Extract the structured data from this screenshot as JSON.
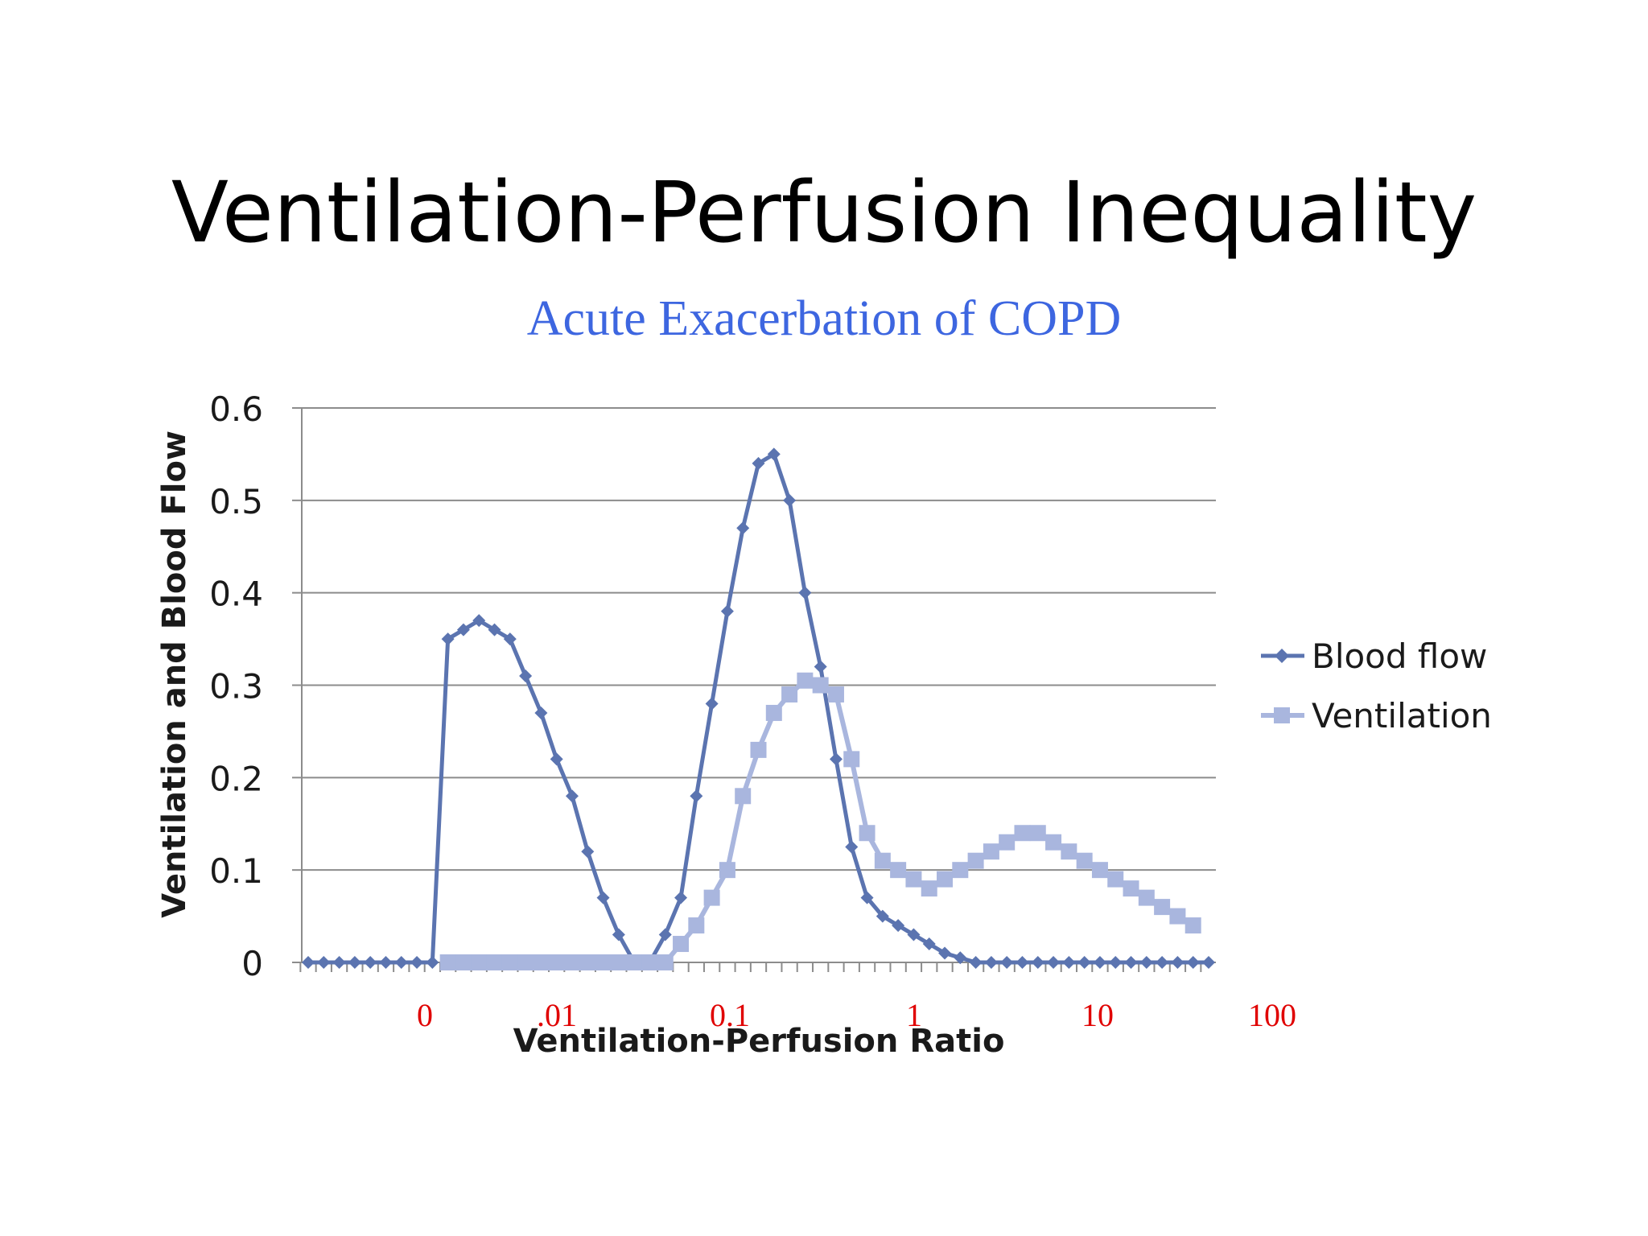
{
  "slide": {
    "title": "Ventilation-Perfusion Inequality",
    "subtitle": "Acute Exacerbation of COPD"
  },
  "colors": {
    "title": "#000000",
    "subtitle": "#3d66e0",
    "blood_flow": "#5b74b0",
    "ventilation": "#a9b6de",
    "gridline": "#8c8c8c",
    "bottom_labels": "#e00000"
  },
  "chart_data": {
    "type": "line",
    "title": "",
    "xlabel": "Ventilation-Perfusion Ratio",
    "ylabel": "Ventilation and Blood Flow",
    "ylim": [
      0,
      0.6
    ],
    "yticks": [
      "0",
      "0.1",
      "0.2",
      "0.3",
      "0.4",
      "0.5",
      "0.6"
    ],
    "x_scale": "log",
    "x_labels": [
      "0",
      ".01",
      "0.1",
      "1",
      "10",
      "100"
    ],
    "grid": true,
    "legend_position": "right",
    "series": [
      {
        "name": "Blood flow",
        "marker": "diamond",
        "values": [
          0,
          0,
          0,
          0,
          0,
          0,
          0,
          0,
          0,
          0.35,
          0.36,
          0.37,
          0.36,
          0.35,
          0.31,
          0.27,
          0.22,
          0.18,
          0.12,
          0.07,
          0.03,
          0,
          0,
          0.03,
          0.07,
          0.18,
          0.28,
          0.38,
          0.47,
          0.54,
          0.55,
          0.5,
          0.4,
          0.32,
          0.22,
          0.125,
          0.07,
          0.05,
          0.04,
          0.03,
          0.02,
          0.01,
          0.005,
          0,
          0,
          0,
          0,
          0,
          0,
          0,
          0,
          0,
          0,
          0,
          0,
          0,
          0,
          0,
          0
        ]
      },
      {
        "name": "Ventilation",
        "marker": "square",
        "values": [
          null,
          null,
          null,
          null,
          null,
          null,
          null,
          null,
          null,
          0,
          0,
          0,
          0,
          0,
          0,
          0,
          0,
          0,
          0,
          0,
          0,
          0,
          0,
          0,
          0.02,
          0.04,
          0.07,
          0.1,
          0.18,
          0.23,
          0.27,
          0.29,
          0.305,
          0.3,
          0.29,
          0.22,
          0.14,
          0.11,
          0.1,
          0.09,
          0.08,
          0.09,
          0.1,
          0.11,
          0.12,
          0.13,
          0.14,
          0.14,
          0.13,
          0.12,
          0.11,
          0.1,
          0.09,
          0.08,
          0.07,
          0.06,
          0.05,
          0.04,
          null
        ]
      }
    ]
  }
}
